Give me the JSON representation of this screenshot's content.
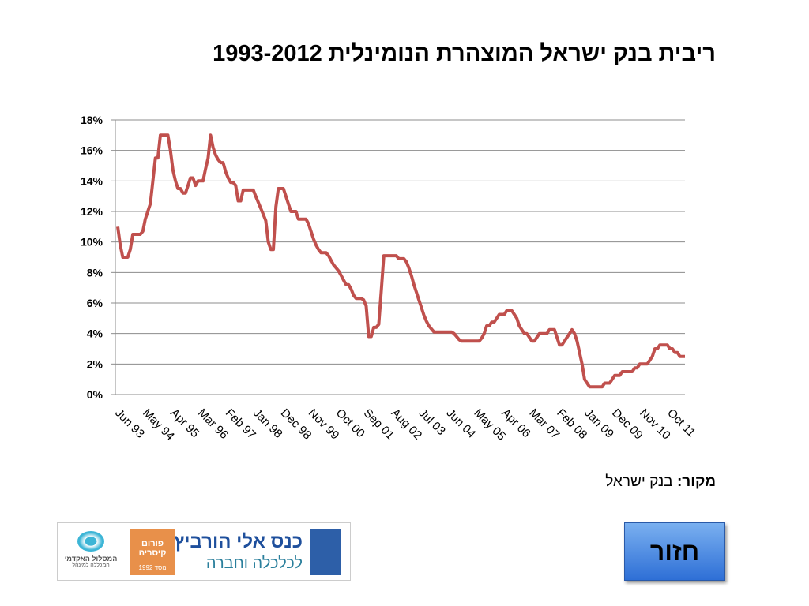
{
  "title": "ריבית בנק ישראל המוצהרת הנומינלית 1993-2012",
  "chart_data": {
    "type": "line",
    "color": "#c0504d",
    "grid": true,
    "categories": [
      "Jun 93",
      null,
      null,
      null,
      null,
      null,
      null,
      null,
      null,
      null,
      null,
      "May 94",
      null,
      null,
      null,
      null,
      null,
      null,
      null,
      null,
      null,
      null,
      "Apr 95",
      null,
      null,
      null,
      null,
      null,
      null,
      null,
      null,
      null,
      null,
      "Mar 96",
      null,
      null,
      null,
      null,
      null,
      null,
      null,
      null,
      null,
      null,
      "Feb 97",
      null,
      null,
      null,
      null,
      null,
      null,
      null,
      null,
      null,
      null,
      "Jan 98",
      null,
      null,
      null,
      null,
      null,
      null,
      null,
      null,
      null,
      null,
      "Dec 98",
      null,
      null,
      null,
      null,
      null,
      null,
      null,
      null,
      null,
      null,
      "Nov 99",
      null,
      null,
      null,
      null,
      null,
      null,
      null,
      null,
      null,
      null,
      "Oct 00",
      null,
      null,
      null,
      null,
      null,
      null,
      null,
      null,
      null,
      null,
      "Sep 01",
      null,
      null,
      null,
      null,
      null,
      null,
      null,
      null,
      null,
      null,
      "Aug 02",
      null,
      null,
      null,
      null,
      null,
      null,
      null,
      null,
      null,
      null,
      "Jul 03",
      null,
      null,
      null,
      null,
      null,
      null,
      null,
      null,
      null,
      null,
      "Jun 04",
      null,
      null,
      null,
      null,
      null,
      null,
      null,
      null,
      null,
      null,
      "May 05",
      null,
      null,
      null,
      null,
      null,
      null,
      null,
      null,
      null,
      null,
      "Apr 06",
      null,
      null,
      null,
      null,
      null,
      null,
      null,
      null,
      null,
      null,
      "Mar 07",
      null,
      null,
      null,
      null,
      null,
      null,
      null,
      null,
      null,
      null,
      "Feb 08",
      null,
      null,
      null,
      null,
      null,
      null,
      null,
      null,
      null,
      null,
      "Jan 09",
      null,
      null,
      null,
      null,
      null,
      null,
      null,
      null,
      null,
      null,
      "Dec 09",
      null,
      null,
      null,
      null,
      null,
      null,
      null,
      null,
      null,
      null,
      "Nov 10",
      null,
      null,
      null,
      null,
      null,
      null,
      null,
      null,
      null,
      null,
      "Oct 11",
      null,
      null,
      null,
      null,
      null,
      null
    ],
    "values": [
      11.0,
      9.8,
      9.0,
      9.0,
      9.0,
      9.5,
      10.5,
      10.5,
      10.5,
      10.5,
      10.7,
      11.5,
      12.0,
      12.5,
      14.0,
      15.5,
      15.5,
      17.0,
      17.0,
      17.0,
      17.0,
      16.0,
      14.7,
      14.0,
      13.5,
      13.5,
      13.2,
      13.2,
      13.7,
      14.2,
      14.2,
      13.7,
      14.0,
      14.0,
      14.0,
      14.8,
      15.5,
      17.0,
      16.2,
      15.7,
      15.4,
      15.2,
      15.2,
      14.6,
      14.2,
      13.9,
      13.9,
      13.7,
      12.7,
      12.7,
      13.4,
      13.4,
      13.4,
      13.4,
      13.4,
      13.0,
      12.6,
      12.2,
      11.8,
      11.4,
      10.0,
      9.5,
      9.5,
      12.3,
      13.5,
      13.5,
      13.5,
      13.0,
      12.5,
      12.0,
      12.0,
      12.0,
      11.5,
      11.5,
      11.5,
      11.5,
      11.2,
      10.7,
      10.2,
      9.8,
      9.5,
      9.3,
      9.3,
      9.3,
      9.1,
      8.8,
      8.5,
      8.3,
      8.1,
      7.8,
      7.5,
      7.2,
      7.2,
      6.9,
      6.5,
      6.3,
      6.3,
      6.3,
      6.2,
      5.8,
      3.8,
      3.8,
      4.4,
      4.4,
      4.6,
      6.8,
      9.1,
      9.1,
      9.1,
      9.1,
      9.1,
      9.1,
      8.9,
      8.9,
      8.9,
      8.7,
      8.3,
      7.8,
      7.2,
      6.7,
      6.2,
      5.7,
      5.2,
      4.8,
      4.5,
      4.3,
      4.1,
      4.1,
      4.1,
      4.1,
      4.1,
      4.1,
      4.1,
      4.1,
      4.0,
      3.8,
      3.6,
      3.5,
      3.5,
      3.5,
      3.5,
      3.5,
      3.5,
      3.5,
      3.5,
      3.7,
      4.0,
      4.5,
      4.5,
      4.75,
      4.75,
      5.0,
      5.25,
      5.25,
      5.25,
      5.5,
      5.5,
      5.5,
      5.25,
      5.0,
      4.5,
      4.25,
      4.0,
      4.0,
      3.75,
      3.5,
      3.5,
      3.75,
      4.0,
      4.0,
      4.0,
      4.0,
      4.25,
      4.25,
      4.25,
      3.75,
      3.25,
      3.25,
      3.5,
      3.75,
      4.0,
      4.25,
      4.0,
      3.5,
      2.75,
      2.0,
      1.0,
      0.75,
      0.5,
      0.5,
      0.5,
      0.5,
      0.5,
      0.5,
      0.75,
      0.75,
      0.75,
      1.0,
      1.25,
      1.25,
      1.25,
      1.5,
      1.5,
      1.5,
      1.5,
      1.5,
      1.75,
      1.75,
      2.0,
      2.0,
      2.0,
      2.0,
      2.25,
      2.5,
      3.0,
      3.0,
      3.25,
      3.25,
      3.25,
      3.25,
      3.0,
      3.0,
      2.75,
      2.75,
      2.5,
      2.5,
      2.5
    ],
    "ylim": [
      0,
      18
    ],
    "yticks": [
      {
        "value": 0,
        "label": "0%"
      },
      {
        "value": 2,
        "label": "2%"
      },
      {
        "value": 4,
        "label": "4%"
      },
      {
        "value": 6,
        "label": "6%"
      },
      {
        "value": 8,
        "label": "8%"
      },
      {
        "value": 10,
        "label": "10%"
      },
      {
        "value": 12,
        "label": "12%"
      },
      {
        "value": 14,
        "label": "14%"
      },
      {
        "value": 16,
        "label": "16%"
      },
      {
        "value": 18,
        "label": "18%"
      }
    ]
  },
  "source": {
    "label": "מקור:",
    "text": "בנק ישראל"
  },
  "logos": {
    "conference": "כנס אלי הורביץ",
    "conference_sub": "לכלכלה וחברה",
    "forum": "פורום קיסריה",
    "forum_year": "נוסד 1992",
    "college": "המסלול האקדמי",
    "college_sub": "המכללה למינהל"
  },
  "button": "חזור"
}
